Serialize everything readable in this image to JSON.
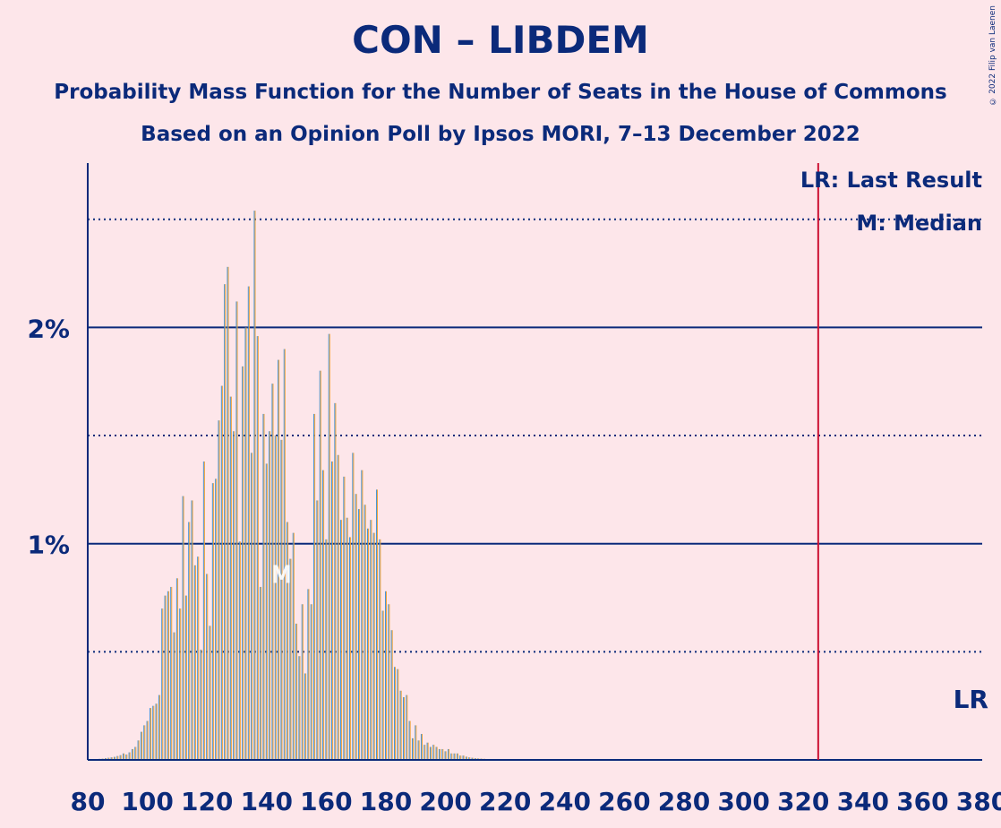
{
  "title": "CON – LIBDEM",
  "subtitle1": "Probability Mass Function for the Number of Seats in the House of Commons",
  "subtitle2": "Based on an Opinion Poll by Ipsos MORI, 7–13 December 2022",
  "copyright": "© 2022 Filip van Laenen",
  "legend": {
    "last_result": "LR: Last Result",
    "median": "M: Median",
    "lr_marker": "LR",
    "median_marker": "M"
  },
  "colors": {
    "background": "#fde6ea",
    "text": "#0b2a7a",
    "bar_blue": "#3b8fd4",
    "bar_orange": "#f0a030",
    "last_result_line": "#cc1133"
  },
  "chart_data": {
    "type": "bar",
    "xlabel": "",
    "ylabel": "",
    "xlim": [
      80,
      380
    ],
    "ylim": [
      0,
      2.76
    ],
    "x_ticks": [
      80,
      100,
      120,
      140,
      160,
      180,
      200,
      220,
      240,
      260,
      280,
      300,
      320,
      340,
      360,
      380
    ],
    "y_ticks": [
      {
        "value": 1,
        "label": "1%"
      },
      {
        "value": 2,
        "label": "2%"
      }
    ],
    "dotted_gridlines": [
      0.5,
      1.5,
      2.5
    ],
    "last_result": 325,
    "median": 145,
    "series": [
      {
        "name": "Seats",
        "x_start": 80,
        "values": [
          0.002,
          0.003,
          0.003,
          0.004,
          0.005,
          0.006,
          0.008,
          0.01,
          0.012,
          0.014,
          0.018,
          0.022,
          0.03,
          0.025,
          0.035,
          0.05,
          0.06,
          0.09,
          0.13,
          0.16,
          0.18,
          0.24,
          0.25,
          0.26,
          0.3,
          0.7,
          0.76,
          0.78,
          0.8,
          0.59,
          0.84,
          0.7,
          1.22,
          0.76,
          1.1,
          1.2,
          0.9,
          0.94,
          0.51,
          1.38,
          0.86,
          0.62,
          1.28,
          1.3,
          1.57,
          1.73,
          2.2,
          2.28,
          1.68,
          1.52,
          2.12,
          1.01,
          1.82,
          2.0,
          2.19,
          1.42,
          2.54,
          1.96,
          0.8,
          1.6,
          1.37,
          1.52,
          1.74,
          1.5,
          1.85,
          1.48,
          1.9,
          1.1,
          0.93,
          1.05,
          0.63,
          0.48,
          0.72,
          0.4,
          0.79,
          0.72,
          1.6,
          1.2,
          1.8,
          1.34,
          1.02,
          1.97,
          1.38,
          1.65,
          1.41,
          1.11,
          1.31,
          1.12,
          1.03,
          1.42,
          1.23,
          1.16,
          1.34,
          1.18,
          1.07,
          1.11,
          1.05,
          1.25,
          1.02,
          0.69,
          0.78,
          0.72,
          0.6,
          0.43,
          0.42,
          0.32,
          0.29,
          0.3,
          0.18,
          0.1,
          0.16,
          0.09,
          0.12,
          0.07,
          0.08,
          0.06,
          0.07,
          0.06,
          0.05,
          0.05,
          0.04,
          0.05,
          0.03,
          0.03,
          0.03,
          0.02,
          0.02,
          0.015,
          0.012,
          0.01,
          0.008,
          0.007,
          0.006,
          0.005,
          0.004,
          0.003,
          0.003,
          0.002,
          0.002,
          0.002,
          0.001
        ]
      }
    ]
  }
}
